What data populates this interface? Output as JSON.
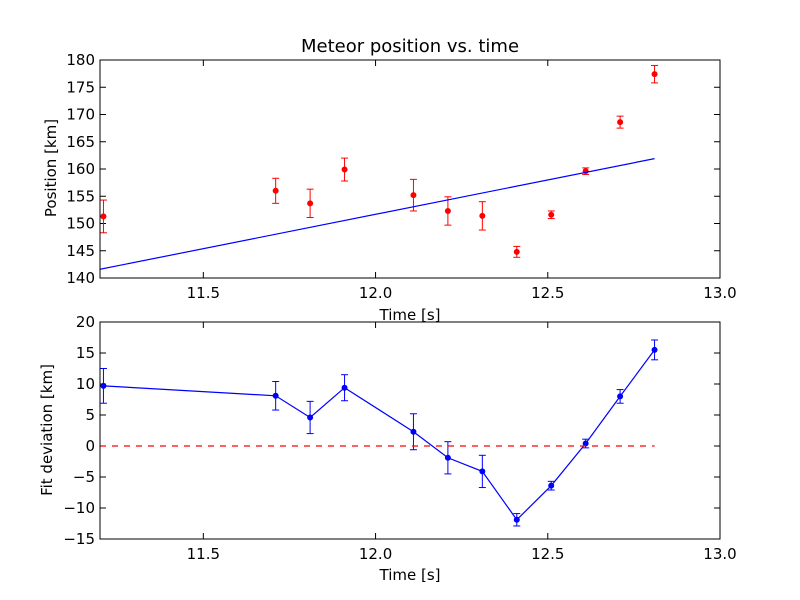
{
  "chart_data": [
    {
      "type": "scatter",
      "title": "Meteor position vs. time",
      "xlabel": "Time [s]",
      "ylabel": "Position [km]",
      "xlim": [
        11.2,
        13.0
      ],
      "ylim": [
        140,
        180
      ],
      "xticks": [
        "11.5",
        "12.0",
        "12.5",
        "13.0"
      ],
      "yticks": [
        "140",
        "145",
        "150",
        "155",
        "160",
        "165",
        "170",
        "175",
        "180"
      ],
      "colors": {
        "points": "#ff0000",
        "fit": "#0000ff"
      },
      "series": [
        {
          "kind": "errorbar",
          "x": [
            11.21,
            11.71,
            11.81,
            11.91,
            12.11,
            12.21,
            12.31,
            12.41,
            12.51,
            12.61,
            12.71,
            12.81
          ],
          "y": [
            151.3,
            156.0,
            153.7,
            159.9,
            155.2,
            152.3,
            151.4,
            144.8,
            151.6,
            159.6,
            168.6,
            177.4
          ],
          "yerr": [
            3.0,
            2.3,
            2.6,
            2.1,
            2.9,
            2.6,
            2.6,
            1.0,
            0.7,
            0.6,
            1.1,
            1.6
          ]
        },
        {
          "kind": "line",
          "x": [
            11.2,
            12.81
          ],
          "y": [
            141.6,
            161.9
          ]
        }
      ]
    },
    {
      "type": "line",
      "title": "",
      "xlabel": "Time [s]",
      "ylabel": "Fit deviation [km]",
      "xlim": [
        11.2,
        13.0
      ],
      "ylim": [
        -15,
        20
      ],
      "xticks": [
        "11.5",
        "12.0",
        "12.5",
        "13.0"
      ],
      "yticks": [
        "−15",
        "−10",
        "−5",
        "0",
        "5",
        "10",
        "15",
        "20"
      ],
      "colors": {
        "points": "#0000ff",
        "zero": "#ff0000"
      },
      "series": [
        {
          "kind": "errorbar-line",
          "x": [
            11.21,
            11.71,
            11.81,
            11.91,
            12.11,
            12.21,
            12.31,
            12.41,
            12.51,
            12.61,
            12.71,
            12.81
          ],
          "y": [
            9.7,
            8.1,
            4.6,
            9.4,
            2.3,
            -1.9,
            -4.1,
            -11.9,
            -6.4,
            0.4,
            8.0,
            15.5
          ],
          "yerr": [
            2.8,
            2.3,
            2.6,
            2.1,
            2.9,
            2.6,
            2.6,
            1.0,
            0.7,
            0.7,
            1.1,
            1.6
          ]
        },
        {
          "kind": "zero-line",
          "x": [
            11.2,
            12.81
          ],
          "y": [
            0,
            0
          ]
        }
      ]
    }
  ]
}
